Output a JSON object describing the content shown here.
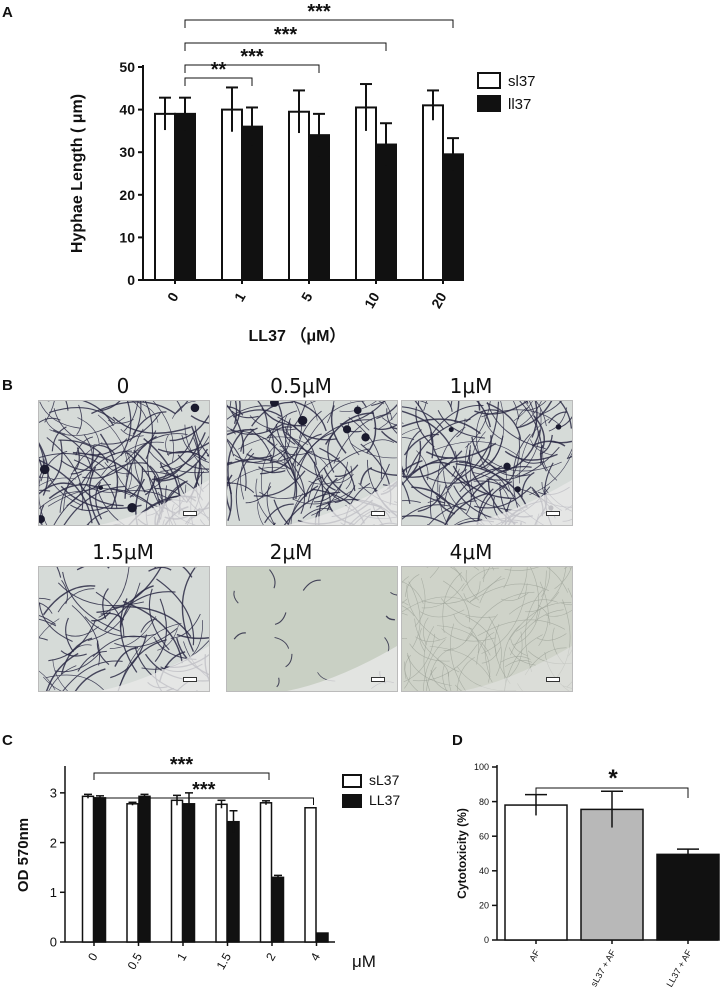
{
  "panels": {
    "a": "A",
    "b": "B",
    "c": "C",
    "d": "D"
  },
  "chart_data": [
    {
      "id": "A",
      "type": "bar",
      "categories": [
        "0",
        "1",
        "5",
        "10",
        "20"
      ],
      "series": [
        {
          "name": "sl37",
          "values": [
            39,
            40,
            39.5,
            40.5,
            41
          ],
          "errors": [
            3.8,
            5.2,
            5,
            5.5,
            3.5
          ],
          "color": "#ffffff"
        },
        {
          "name": "ll37",
          "values": [
            39,
            36,
            34,
            31.8,
            29.5
          ],
          "errors": [
            3.8,
            4.5,
            5,
            5,
            3.8
          ],
          "color": "#111111"
        }
      ],
      "xlabel": "LL37 （μM）",
      "ylabel": "Hyphae Length ( μm)",
      "ylim": [
        0,
        50
      ],
      "yticks": [
        "0",
        "10",
        "20",
        "30",
        "40",
        "50"
      ],
      "significance": [
        {
          "from": "0",
          "to": "1",
          "label": "**"
        },
        {
          "from": "0",
          "to": "5",
          "label": "***"
        },
        {
          "from": "0",
          "to": "10",
          "label": "***"
        },
        {
          "from": "0",
          "to": "20",
          "label": "***"
        }
      ],
      "legend": "right"
    },
    {
      "id": "C",
      "type": "bar",
      "categories": [
        "0",
        "0.5",
        "1",
        "1.5",
        "2",
        "4"
      ],
      "series": [
        {
          "name": "sL37",
          "values": [
            2.93,
            2.78,
            2.85,
            2.77,
            2.8,
            2.7
          ],
          "errors": [
            0.04,
            0.03,
            0.1,
            0.08,
            0.04,
            0
          ],
          "color": "#ffffff"
        },
        {
          "name": "LL37",
          "values": [
            2.9,
            2.93,
            2.78,
            2.42,
            1.3,
            0.18
          ],
          "errors": [
            0.04,
            0.04,
            0.22,
            0.22,
            0.04,
            0
          ],
          "color": "#111111"
        }
      ],
      "xlabel": "",
      "unit": "μM",
      "ylabel": "OD 570nm",
      "ylim": [
        0,
        3.5
      ],
      "yticks": [
        "0",
        "1",
        "2",
        "3"
      ],
      "significance": [
        {
          "from": "0",
          "to": "2",
          "label": "***"
        },
        {
          "from": "0",
          "to": "4",
          "label": "***"
        }
      ],
      "legend": "right"
    },
    {
      "id": "D",
      "type": "bar",
      "categories": [
        "AF",
        "sL37 + AF",
        "LL37 + AF"
      ],
      "series": [
        {
          "name": "Cytotoxicity",
          "values": [
            78,
            75.5,
            49.5
          ],
          "errors": [
            6,
            10.5,
            3
          ],
          "colors": [
            "#ffffff",
            "#b8b8b8",
            "#111111"
          ]
        }
      ],
      "xlabel": "",
      "ylabel": "Cytotoxicity (%)",
      "ylim": [
        0,
        100
      ],
      "yticks": [
        "0",
        "20",
        "40",
        "60",
        "80",
        "100"
      ],
      "significance": [
        {
          "from": "AF",
          "to": "LL37 + AF",
          "label": "*"
        }
      ]
    }
  ],
  "micrographs": [
    {
      "label": "0",
      "density": "dense"
    },
    {
      "label": "0.5μM",
      "density": "dense"
    },
    {
      "label": "1μM",
      "density": "dense"
    },
    {
      "label": "1.5μM",
      "density": "medium"
    },
    {
      "label": "2μM",
      "density": "sparse"
    },
    {
      "label": "4μM",
      "density": "faint"
    }
  ]
}
